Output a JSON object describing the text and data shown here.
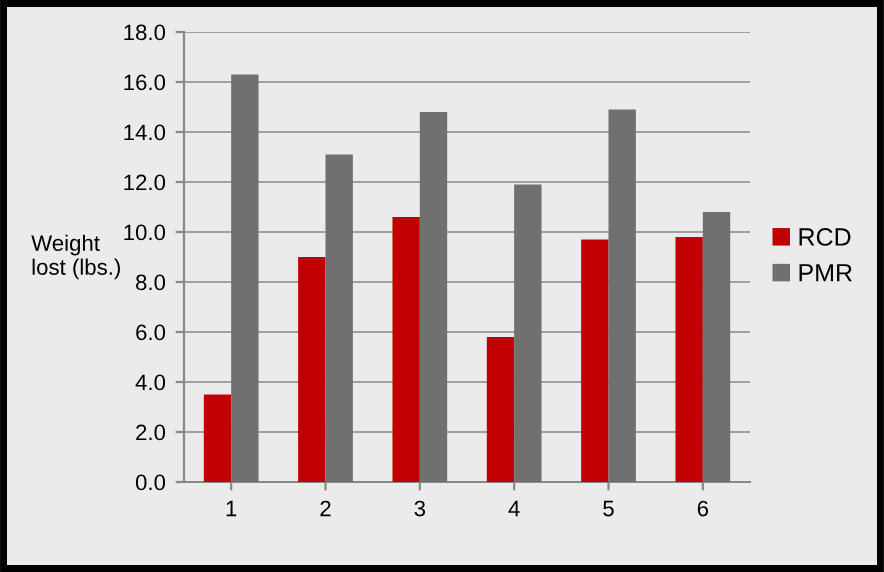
{
  "chart_data": {
    "type": "bar",
    "ylabel": "Weight\nlost (lbs.)",
    "categories": [
      "1",
      "2",
      "3",
      "4",
      "5",
      "6"
    ],
    "series": [
      {
        "name": "RCD",
        "color": "#c00000",
        "values": [
          3.5,
          9.0,
          10.6,
          5.8,
          9.7,
          9.8
        ]
      },
      {
        "name": "PMR",
        "color": "#707070",
        "values": [
          16.3,
          13.1,
          14.8,
          11.9,
          14.9,
          10.8
        ]
      }
    ],
    "ylim": [
      0,
      18
    ],
    "yticks": [
      {
        "value": 0,
        "label": "0.0"
      },
      {
        "value": 2,
        "label": "2.0"
      },
      {
        "value": 4,
        "label": "4.0"
      },
      {
        "value": 6,
        "label": "6.0"
      },
      {
        "value": 8,
        "label": "8.0"
      },
      {
        "value": 10,
        "label": "10.0"
      },
      {
        "value": 12,
        "label": "12.0"
      },
      {
        "value": 14,
        "label": "14.0"
      },
      {
        "value": 16,
        "label": "16.0"
      },
      {
        "value": 18,
        "label": "18.0"
      }
    ],
    "grid": "y",
    "legend": "right"
  }
}
